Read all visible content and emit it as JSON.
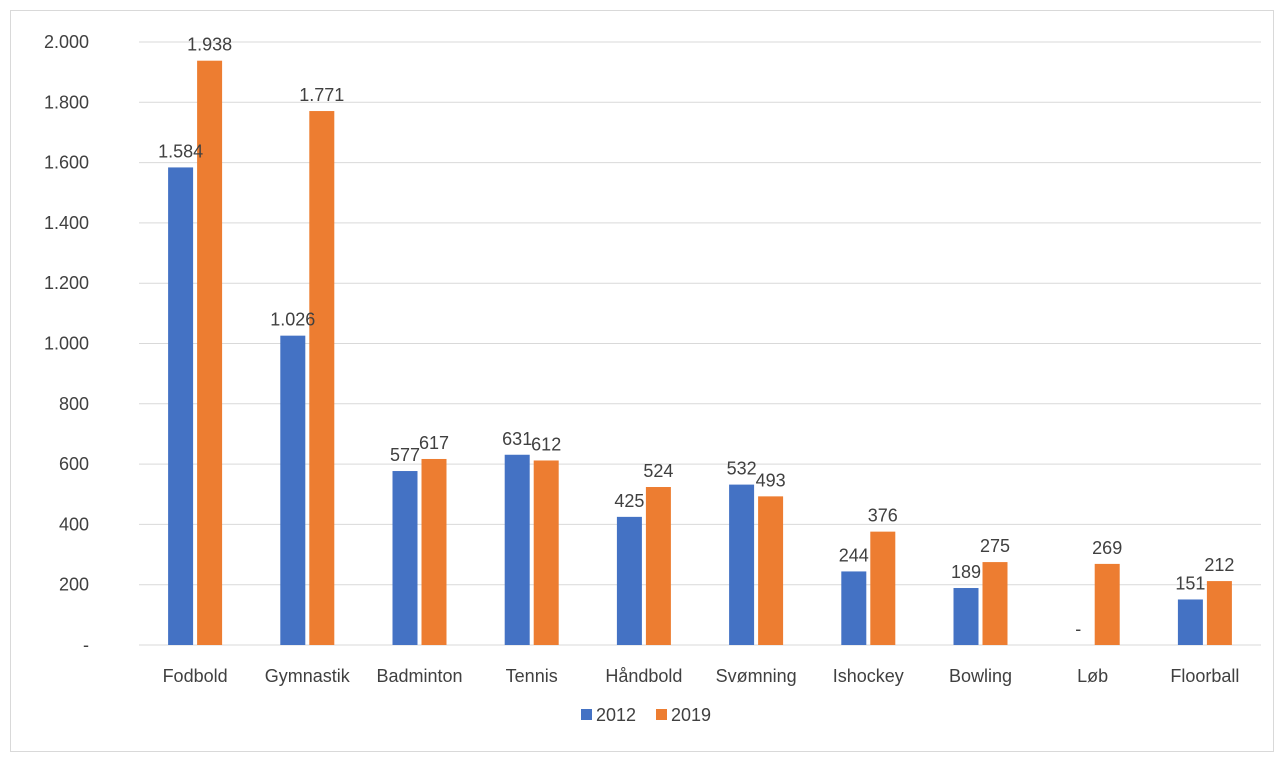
{
  "chart_data": {
    "type": "bar",
    "title": "",
    "xlabel": "",
    "ylabel": "",
    "categories": [
      "Fodbold",
      "Gymnastik",
      "Badminton",
      "Tennis",
      "Håndbold",
      "Svømning",
      "Ishockey",
      "Bowling",
      "Løb",
      "Floorball"
    ],
    "series": [
      {
        "name": "2012",
        "color": "#4472C4",
        "values": [
          1584,
          1026,
          577,
          631,
          425,
          532,
          244,
          189,
          0,
          151
        ],
        "labels": [
          "1.584",
          "1.026",
          "577",
          "631",
          "425",
          "532",
          "244",
          "189",
          "-",
          "151"
        ]
      },
      {
        "name": "2019",
        "color": "#ED7D31",
        "values": [
          1938,
          1771,
          617,
          612,
          524,
          493,
          376,
          275,
          269,
          212
        ],
        "labels": [
          "1.938",
          "1.771",
          "617",
          "612",
          "524",
          "493",
          "376",
          "275",
          "269",
          "212"
        ]
      }
    ],
    "ylim": [
      0,
      2000
    ],
    "yticks": [
      0,
      200,
      400,
      600,
      800,
      1000,
      1200,
      1400,
      1600,
      1800,
      2000
    ],
    "ytick_labels": [
      "-",
      "200",
      "400",
      "600",
      "800",
      "1.000",
      "1.200",
      "1.400",
      "1.600",
      "1.800",
      "2.000"
    ],
    "grid": true,
    "legend_position": "bottom-center",
    "gridline_color": "#d9d9d9"
  }
}
